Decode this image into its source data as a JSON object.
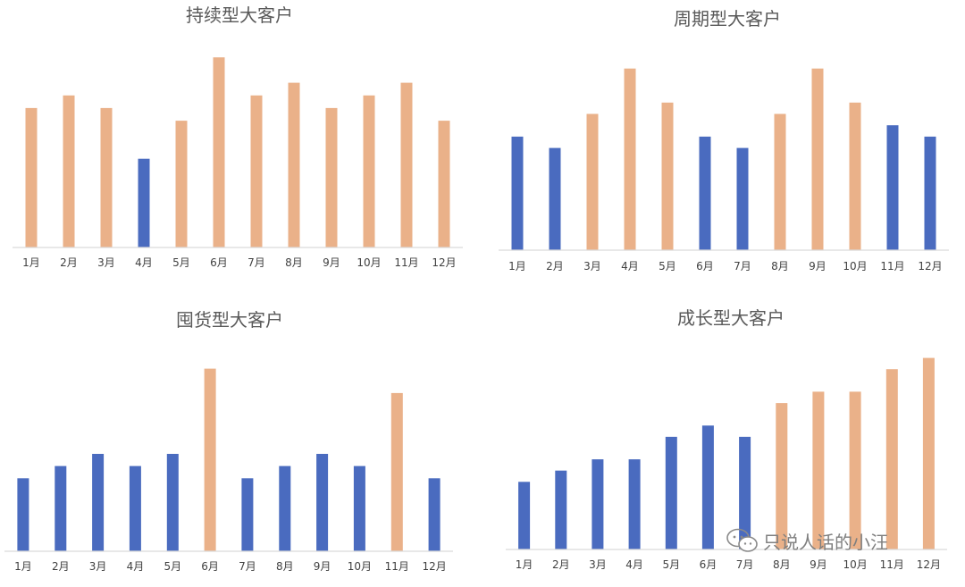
{
  "colors": {
    "highlight": "#EAB189",
    "base": "#4A6BBF",
    "axis": "#D9D9D9"
  },
  "months": [
    "1月",
    "2月",
    "3月",
    "4月",
    "5月",
    "6月",
    "7月",
    "8月",
    "9月",
    "10月",
    "11月",
    "12月"
  ],
  "chart_data": [
    {
      "type": "bar",
      "title": "持续型大客户",
      "categories": [
        "1月",
        "2月",
        "3月",
        "4月",
        "5月",
        "6月",
        "7月",
        "8月",
        "9月",
        "10月",
        "11月",
        "12月"
      ],
      "values": [
        11,
        12,
        11,
        7,
        10,
        15,
        12,
        13,
        11,
        12,
        13,
        10
      ],
      "highlight": [
        true,
        true,
        true,
        false,
        true,
        true,
        true,
        true,
        true,
        true,
        true,
        true
      ],
      "ylim": [
        0,
        16
      ]
    },
    {
      "type": "bar",
      "title": "周期型大客户",
      "categories": [
        "1月",
        "2月",
        "3月",
        "4月",
        "5月",
        "6月",
        "7月",
        "8月",
        "9月",
        "10月",
        "11月",
        "12月"
      ],
      "values": [
        10,
        9,
        12,
        16,
        13,
        10,
        9,
        12,
        16,
        13,
        11,
        10
      ],
      "highlight": [
        false,
        false,
        true,
        true,
        true,
        false,
        false,
        true,
        true,
        true,
        false,
        false
      ],
      "ylim": [
        0,
        17
      ]
    },
    {
      "type": "bar",
      "title": "囤货型大客户",
      "categories": [
        "1月",
        "2月",
        "3月",
        "4月",
        "5月",
        "6月",
        "7月",
        "8月",
        "9月",
        "10月",
        "11月",
        "12月"
      ],
      "values": [
        6,
        7,
        8,
        7,
        8,
        15,
        6,
        7,
        8,
        7,
        13,
        6
      ],
      "highlight": [
        false,
        false,
        false,
        false,
        false,
        true,
        false,
        false,
        false,
        false,
        true,
        false
      ],
      "ylim": [
        0,
        16
      ]
    },
    {
      "type": "bar",
      "title": "成长型大客户",
      "categories": [
        "1月",
        "2月",
        "3月",
        "4月",
        "5月",
        "6月",
        "7月",
        "8月",
        "9月",
        "10月",
        "11月",
        "12月"
      ],
      "values": [
        6,
        7,
        8,
        8,
        10,
        11,
        10,
        13,
        14,
        14,
        16,
        17
      ],
      "highlight": [
        false,
        false,
        false,
        false,
        false,
        false,
        false,
        true,
        true,
        true,
        true,
        true
      ],
      "ylim": [
        0,
        18
      ]
    }
  ],
  "watermark": {
    "text": "只说人话的小汪",
    "icon": "wechat-icon"
  }
}
